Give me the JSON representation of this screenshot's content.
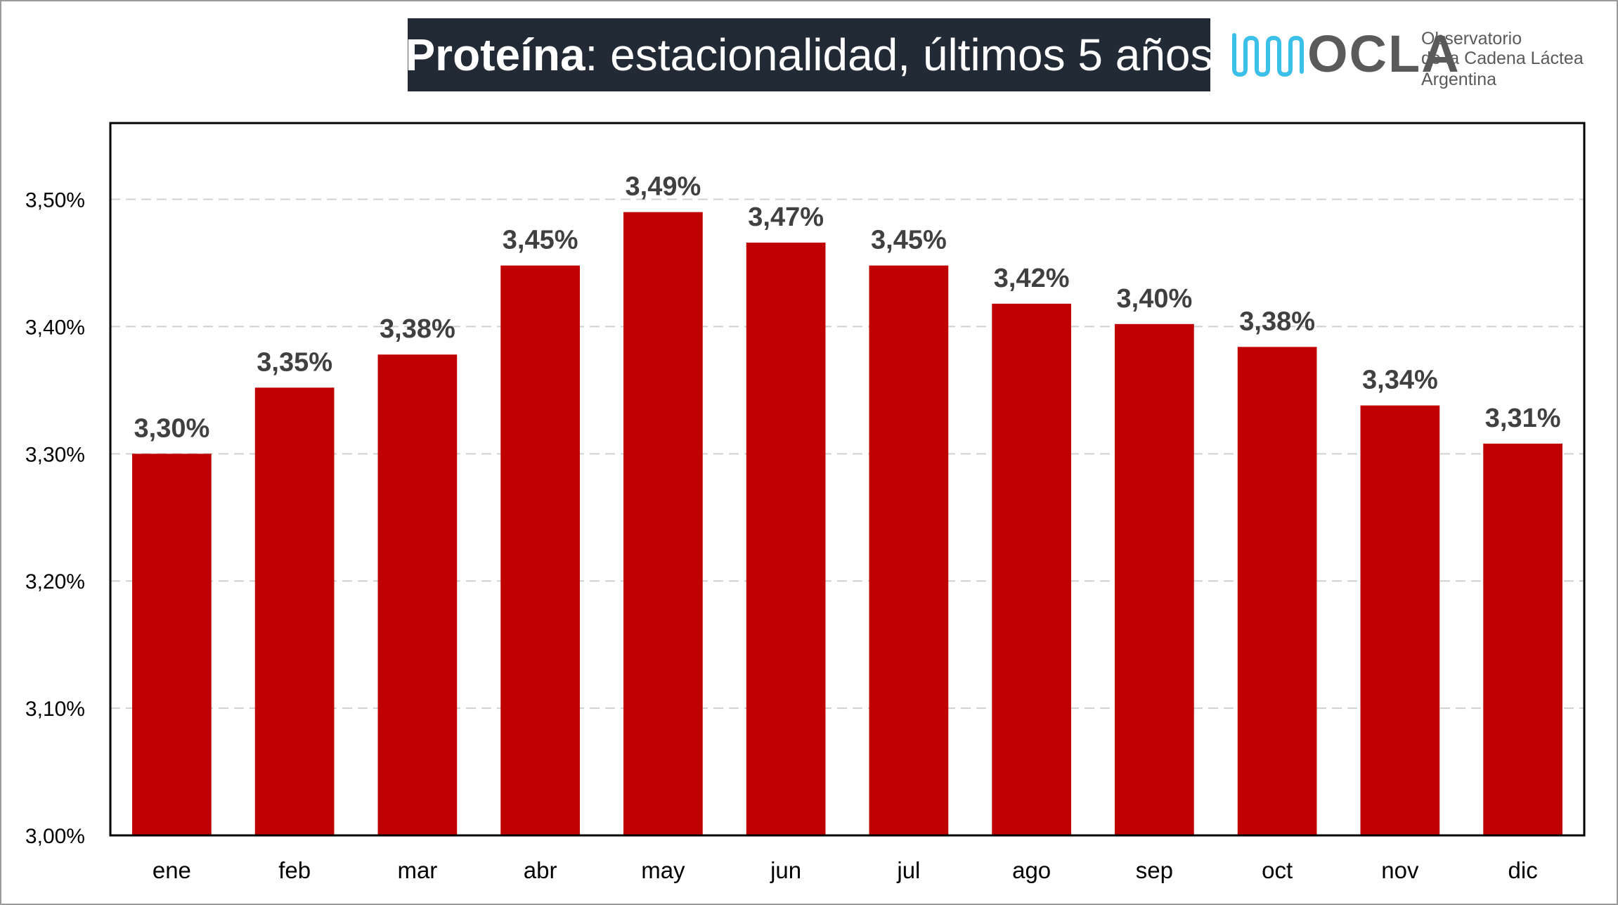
{
  "header": {
    "title_bold": "Proteína",
    "title_rest": ": estacionalidad, últimos 5 años"
  },
  "logo": {
    "name": "OCLA",
    "line1": "Observatorio",
    "line2": "de la Cadena Láctea",
    "line3": "Argentina",
    "icon": "milk-wave-logo-icon",
    "color": "#3cc0e8"
  },
  "chart_data": {
    "type": "bar",
    "categories": [
      "ene",
      "feb",
      "mar",
      "abr",
      "may",
      "jun",
      "jul",
      "ago",
      "sep",
      "oct",
      "nov",
      "dic"
    ],
    "values": [
      3.3,
      3.352,
      3.378,
      3.448,
      3.49,
      3.466,
      3.448,
      3.418,
      3.402,
      3.384,
      3.338,
      3.308
    ],
    "data_labels": [
      "3,30%",
      "3,35%",
      "3,38%",
      "3,45%",
      "3,49%",
      "3,47%",
      "3,45%",
      "3,42%",
      "3,40%",
      "3,38%",
      "3,34%",
      "3,31%"
    ],
    "title": "Proteína: estacionalidad, últimos 5 años",
    "xlabel": "",
    "ylabel": "",
    "ylim": [
      3.0,
      3.56
    ],
    "yticks": [
      3.0,
      3.1,
      3.2,
      3.3,
      3.4,
      3.5
    ],
    "ytick_labels": [
      "3,00%",
      "3,10%",
      "3,20%",
      "3,30%",
      "3,40%",
      "3,50%"
    ],
    "grid": true,
    "bar_color": "#c00000",
    "label_color": "#404040"
  }
}
